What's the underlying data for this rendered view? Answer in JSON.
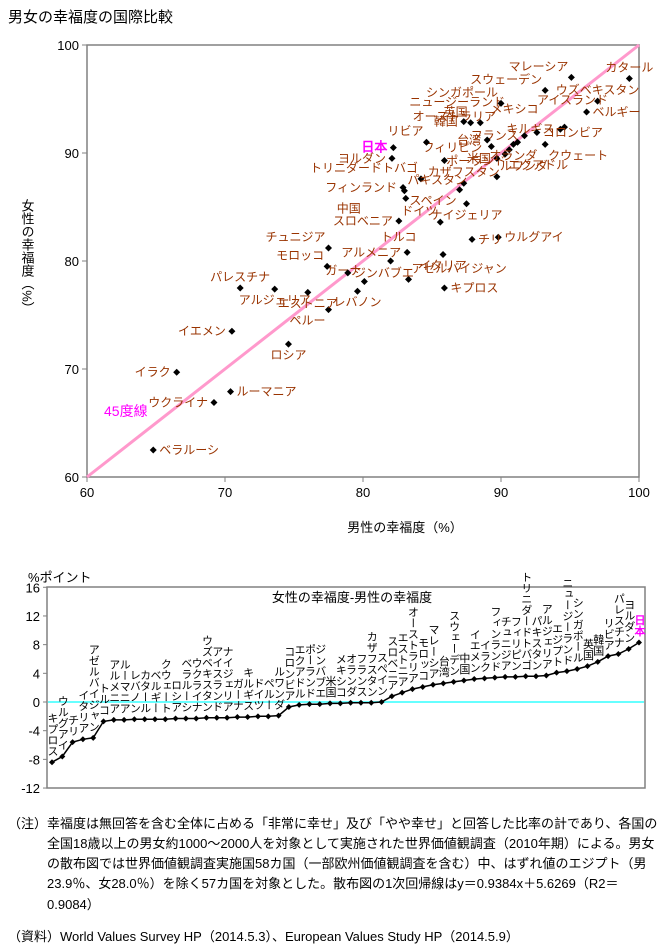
{
  "title": "男女の幸福度の国際比較",
  "colors": {
    "country_label": "#993300",
    "highlight": "#FF00FF",
    "diagonal_line": "#FF99CC",
    "zero_line": "#66FFFF",
    "marker": "#000000",
    "frame": "#808080"
  },
  "chart_data": [
    {
      "type": "scatter",
      "xlabel": "男性の幸福度（%）",
      "ylabel": "女性の幸福度（%）",
      "xlim": [
        60,
        100
      ],
      "ylim": [
        60,
        100
      ],
      "xticks": [
        60,
        70,
        80,
        90,
        100
      ],
      "yticks": [
        60,
        70,
        80,
        90,
        100
      ],
      "grid": false,
      "diagonal_label": "45度線",
      "points": [
        {
          "name": "キプロス",
          "m": 85.9,
          "f": 77.5,
          "lp": "r"
        },
        {
          "name": "ウルグアイ",
          "m": 89.8,
          "f": 82.2,
          "lp": "r"
        },
        {
          "name": "チリ",
          "m": 87.9,
          "f": 82.0,
          "lp": "r"
        },
        {
          "name": "イタリア",
          "m": 85.8,
          "f": 80.6,
          "lp": "b"
        },
        {
          "name": "アゼルバイジャン",
          "m": 83.3,
          "f": 78.3,
          "lp": "ar"
        },
        {
          "name": "トルコ",
          "m": 82.0,
          "f": 80.0,
          "o": [
            8,
            -24
          ]
        },
        {
          "name": "アルメニア",
          "m": 83.2,
          "f": 80.8,
          "lp": "l"
        },
        {
          "name": "ルーマニア",
          "m": 70.4,
          "f": 67.9,
          "lp": "r"
        },
        {
          "name": "レバノン",
          "m": 79.6,
          "f": 77.2,
          "lp": "b"
        },
        {
          "name": "カタール",
          "m": 99.3,
          "f": 96.9,
          "lp": "a"
        },
        {
          "name": "ベルギー",
          "m": 96.2,
          "f": 93.8,
          "lp": "r"
        },
        {
          "name": "クウェート",
          "m": 93.2,
          "f": 90.8,
          "lp": "br"
        },
        {
          "name": "ロシア",
          "m": 74.6,
          "f": 72.3,
          "lp": "b"
        },
        {
          "name": "ベラルーシ",
          "m": 64.8,
          "f": 62.5,
          "lp": "r"
        },
        {
          "name": "ウクライナ",
          "m": 69.2,
          "f": 66.9,
          "lp": "l"
        },
        {
          "name": "ウズベキスタン",
          "m": 97.0,
          "f": 94.8,
          "lp": "a"
        },
        {
          "name": "アイスランド",
          "m": 94.6,
          "f": 92.4,
          "o": [
            8,
            -27
          ]
        },
        {
          "name": "ナイジェリア",
          "m": 87.5,
          "f": 85.3,
          "lp": "b"
        },
        {
          "name": "ガーナ",
          "m": 80.1,
          "f": 78.1,
          "lp": "al"
        },
        {
          "name": "キルギス",
          "m": 94.3,
          "f": 92.2,
          "lp": "l"
        },
        {
          "name": "ドイツ",
          "m": 85.6,
          "f": 83.6,
          "lp": "al"
        },
        {
          "name": "ペルー",
          "m": 77.5,
          "f": 75.5,
          "lp": "bl"
        },
        {
          "name": "ルワンダ",
          "m": 89.7,
          "f": 87.8,
          "lp": "ar"
        },
        {
          "name": "コロンビア",
          "m": 92.6,
          "f": 91.9,
          "lp": "r"
        },
        {
          "name": "エクアドル",
          "m": 90.3,
          "f": 89.9,
          "lp": "br"
        },
        {
          "name": "ポーランド",
          "m": 90.6,
          "f": 90.3,
          "lp": "bl"
        },
        {
          "name": "ジンバブエ",
          "m": 78.9,
          "f": 78.9,
          "lp": "r"
        },
        {
          "name": "米国",
          "m": 89.7,
          "f": 89.5,
          "lp": "l"
        },
        {
          "name": "メキシコ",
          "m": 91.2,
          "f": 91.0,
          "o": [
            -3,
            -33
          ]
        },
        {
          "name": "オランダ",
          "m": 90.9,
          "f": 90.8,
          "lp": "b"
        },
        {
          "name": "フランス",
          "m": 91.7,
          "f": 91.6,
          "lp": "l"
        },
        {
          "name": "カザフスタン",
          "m": 87.3,
          "f": 87.2,
          "lp": "a"
        },
        {
          "name": "スペイン",
          "m": 87.0,
          "f": 86.6,
          "lp": "bl"
        },
        {
          "name": "スロベニア",
          "m": 82.6,
          "f": 83.7,
          "lp": "l"
        },
        {
          "name": "エストニア",
          "m": 76.0,
          "f": 77.1,
          "lp": "b"
        },
        {
          "name": "オーストラリア",
          "m": 89.3,
          "f": 90.6,
          "o": [
            -37,
            -30
          ]
        },
        {
          "name": "モロッコ",
          "m": 77.4,
          "f": 79.5,
          "lp": "al"
        },
        {
          "name": "マレーシア",
          "m": 95.1,
          "f": 97.0,
          "lp": "al"
        },
        {
          "name": "台湾",
          "m": 89.0,
          "f": 91.2,
          "lp": "l"
        },
        {
          "name": "スウェーデン",
          "m": 93.2,
          "f": 95.8,
          "lp": "al"
        },
        {
          "name": "中国",
          "m": 83.1,
          "f": 85.8,
          "o": [
            -57,
            10
          ]
        },
        {
          "name": "イエメン",
          "m": 70.5,
          "f": 73.5,
          "lp": "l"
        },
        {
          "name": "イラク",
          "m": 66.5,
          "f": 69.7,
          "lp": "l"
        },
        {
          "name": "フィンランド",
          "m": 82.9,
          "f": 86.8,
          "lp": "l"
        },
        {
          "name": "チュニジア",
          "m": 77.5,
          "f": 81.2,
          "lp": "al"
        },
        {
          "name": "フィリピン",
          "m": 85.9,
          "f": 89.3,
          "o": [
            8,
            -13
          ]
        },
        {
          "name": "トリニダードトバゴ",
          "m": 84.2,
          "f": 87.6,
          "lp": "al"
        },
        {
          "name": "パキスタン",
          "m": 83.0,
          "f": 86.5,
          "lp": "ar"
        },
        {
          "name": "アルジェリア",
          "m": 73.6,
          "f": 77.4,
          "lp": "b"
        },
        {
          "name": "ニュージーランド",
          "m": 88.5,
          "f": 92.8,
          "o": [
            -23,
            -21
          ]
        },
        {
          "name": "シンガポール",
          "m": 90.0,
          "f": 94.6,
          "lp": "al"
        },
        {
          "name": "英国",
          "m": 87.8,
          "f": 92.8,
          "lp": "al"
        },
        {
          "name": "韓国",
          "m": 87.3,
          "f": 92.9,
          "lp": "l"
        },
        {
          "name": "リビア",
          "m": 84.6,
          "f": 91.0,
          "lp": "al"
        },
        {
          "name": "パレスチナ",
          "m": 71.1,
          "f": 77.5,
          "lp": "a"
        },
        {
          "name": "ヨルダン",
          "m": 82.1,
          "f": 89.5,
          "lp": "l"
        },
        {
          "name": "日本",
          "m": 82.2,
          "f": 90.5,
          "lp": "l",
          "hl": true
        }
      ]
    },
    {
      "type": "line",
      "title": "女性の幸福度-男性の幸福度",
      "ylabel": "%ポイント",
      "ylim": [
        -12,
        16
      ],
      "yticks": [
        16,
        12,
        8,
        4,
        0,
        -4,
        -8,
        -12
      ],
      "zero_line": true,
      "points": [
        {
          "name": "キプロス",
          "v": -8.4
        },
        {
          "name": "ウルグアイ",
          "v": -7.6
        },
        {
          "name": "チリ",
          "v": -5.6
        },
        {
          "name": "イタリア",
          "v": -5.2
        },
        {
          "name": "アゼルバイジャン",
          "v": -5.0
        },
        {
          "name": "トルコ",
          "v": -2.7
        },
        {
          "name": "アルメニア",
          "v": -2.5
        },
        {
          "name": "ルーマニア",
          "v": -2.5
        },
        {
          "name": "レバノン",
          "v": -2.4
        },
        {
          "name": "カタール",
          "v": -2.4
        },
        {
          "name": "ベルギー",
          "v": -2.4
        },
        {
          "name": "クウェート",
          "v": -2.4
        },
        {
          "name": "ロシア",
          "v": -2.3
        },
        {
          "name": "ベラルーシ",
          "v": -2.3
        },
        {
          "name": "ウクライナ",
          "v": -2.3
        },
        {
          "name": "ウズベキスタン",
          "v": -2.2
        },
        {
          "name": "アイスランド",
          "v": -2.2
        },
        {
          "name": "ナイジェリア",
          "v": -2.2
        },
        {
          "name": "ガーナ",
          "v": -2.1
        },
        {
          "name": "キルギス",
          "v": -2.1
        },
        {
          "name": "ドイツ",
          "v": -2.0
        },
        {
          "name": "ペルー",
          "v": -2.0
        },
        {
          "name": "ルワンダ",
          "v": -1.9
        },
        {
          "name": "コロンビア",
          "v": -0.7
        },
        {
          "name": "エクアドル",
          "v": -0.4
        },
        {
          "name": "ポーランド",
          "v": -0.3
        },
        {
          "name": "ジンバブエ",
          "v": -0.3
        },
        {
          "name": "米国",
          "v": -0.2
        },
        {
          "name": "メキシコ",
          "v": -0.2
        },
        {
          "name": "オランダ",
          "v": -0.1
        },
        {
          "name": "フランス",
          "v": -0.1
        },
        {
          "name": "カザフスタン",
          "v": -0.1
        },
        {
          "name": "スペイン",
          "v": 0.0
        },
        {
          "name": "スロベニア",
          "v": 0.8
        },
        {
          "name": "エストニア",
          "v": 1.3
        },
        {
          "name": "オーストラリア",
          "v": 1.8
        },
        {
          "name": "モロッコ",
          "v": 2.1
        },
        {
          "name": "マレーシア",
          "v": 2.4
        },
        {
          "name": "台湾",
          "v": 2.6
        },
        {
          "name": "スウェーデン",
          "v": 2.8
        },
        {
          "name": "中国",
          "v": 3.0
        },
        {
          "name": "イエメン",
          "v": 3.2
        },
        {
          "name": "イラク",
          "v": 3.3
        },
        {
          "name": "フィンランド",
          "v": 3.4
        },
        {
          "name": "チュニジア",
          "v": 3.5
        },
        {
          "name": "フィリピン",
          "v": 3.5
        },
        {
          "name": "トリニダードトバゴ",
          "v": 3.6
        },
        {
          "name": "パキスタン",
          "v": 3.6
        },
        {
          "name": "アルジェリア",
          "v": 3.7
        },
        {
          "name": "エジプト",
          "v": 4.1
        },
        {
          "name": "ニュージーランド",
          "v": 4.3
        },
        {
          "name": "シンガポール",
          "v": 4.6
        },
        {
          "name": "英国",
          "v": 5.0
        },
        {
          "name": "韓国",
          "v": 5.6
        },
        {
          "name": "リビア",
          "v": 6.4
        },
        {
          "name": "パレスチナ",
          "v": 6.7
        },
        {
          "name": "ヨルダン",
          "v": 7.4
        },
        {
          "name": "日本",
          "v": 8.3,
          "hl": true
        }
      ]
    }
  ],
  "notes": {
    "note_label": "（注）",
    "note_body": "幸福度は無回答を含む全体に占める「非常に幸せ」及び「やや幸せ」と回答した比率の計であり、各国の全国18歳以上の男女約1000～2000人を対象として実施された世界価値観調査（2010年期）による。男女の散布図では世界価値観調査実施国58カ国（一部欧州価値観調査を含む）中、はずれ値のエジプト（男23.9％、女28.0％）を除く57カ国を対象とした。散布図の1次回帰線はy＝0.9384x＋5.6269（R2＝0.9084）",
    "source": "（資料）World Values Survey HP（2014.5.3）、European Values Study HP（2014.5.9）"
  }
}
